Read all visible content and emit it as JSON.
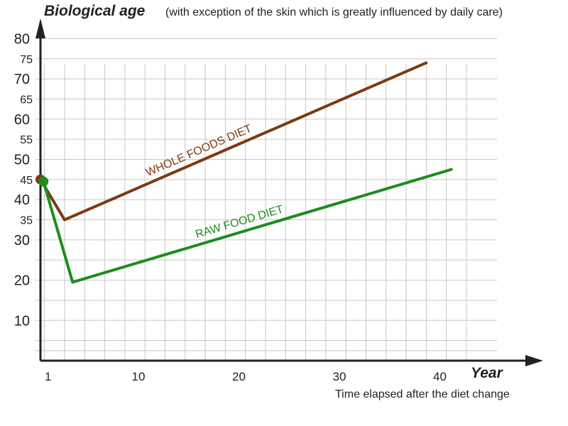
{
  "title": "Biological age",
  "subtitle": "(with exception of the skin which is greatly influenced by daily care)",
  "xlabel": "Year",
  "xsublabel": "Time elapsed after the diet change",
  "colors": {
    "whole_foods": "#7a3a12",
    "raw_food": "#1e8c1e",
    "axis": "#222222",
    "grid": "#c8c8c8"
  },
  "chart_data": {
    "type": "line",
    "title": "Biological age",
    "subtitle": "(with exception of the skin which is greatly influenced by daily care)",
    "xlabel": "Year",
    "xsublabel": "Time elapsed after the diet change",
    "xlim": [
      0.6,
      50
    ],
    "ylim": [
      0,
      80
    ],
    "x_ticks": [
      1,
      10,
      20,
      30,
      40
    ],
    "y_ticks_major": [
      10,
      20,
      30,
      40,
      50,
      60,
      70,
      80
    ],
    "y_ticks_minor": [
      35,
      45,
      55,
      65,
      75
    ],
    "grid": true,
    "series": [
      {
        "name": "WHOLE FOODS DIET",
        "color": "#7a3a12",
        "x": [
          0.6,
          3,
          39
        ],
        "y": [
          45,
          35,
          74
        ]
      },
      {
        "name": "RAW FOOD DIET",
        "color": "#1e8c1e",
        "x": [
          0.9,
          3.8,
          41.5
        ],
        "y": [
          44.5,
          19.5,
          47.5
        ]
      }
    ]
  }
}
